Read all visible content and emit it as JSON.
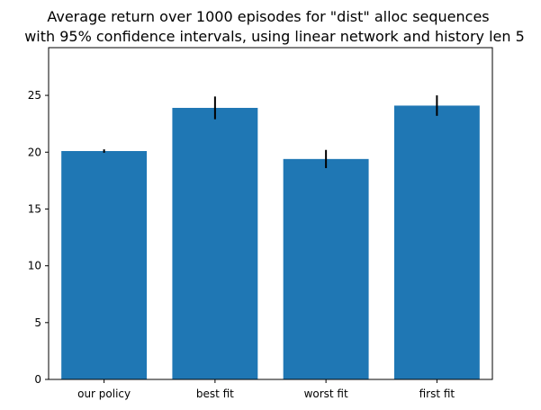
{
  "chart_data": {
    "type": "bar",
    "title_lines": [
      "Average return over 1000 episodes for \"dist\" alloc sequences",
      "with 95% confidence intervals, using linear network and history len 5"
    ],
    "xlabel": "",
    "ylabel": "",
    "categories": [
      "our policy",
      "best fit",
      "worst fit",
      "first fit"
    ],
    "values": [
      20.1,
      23.9,
      19.4,
      24.1
    ],
    "error_low": [
      0.15,
      1.0,
      0.8,
      0.9
    ],
    "error_high": [
      0.15,
      1.0,
      0.8,
      0.9
    ],
    "ylim": [
      0,
      29.2
    ],
    "yticks": [
      0,
      5,
      10,
      15,
      20,
      25
    ],
    "ytick_labels": [
      "0",
      "5",
      "10",
      "15",
      "20",
      "25"
    ],
    "grid": false,
    "legend": "none",
    "colors": {
      "bar": "#1f77b4",
      "error": "#000000",
      "axes": "#000000"
    }
  }
}
